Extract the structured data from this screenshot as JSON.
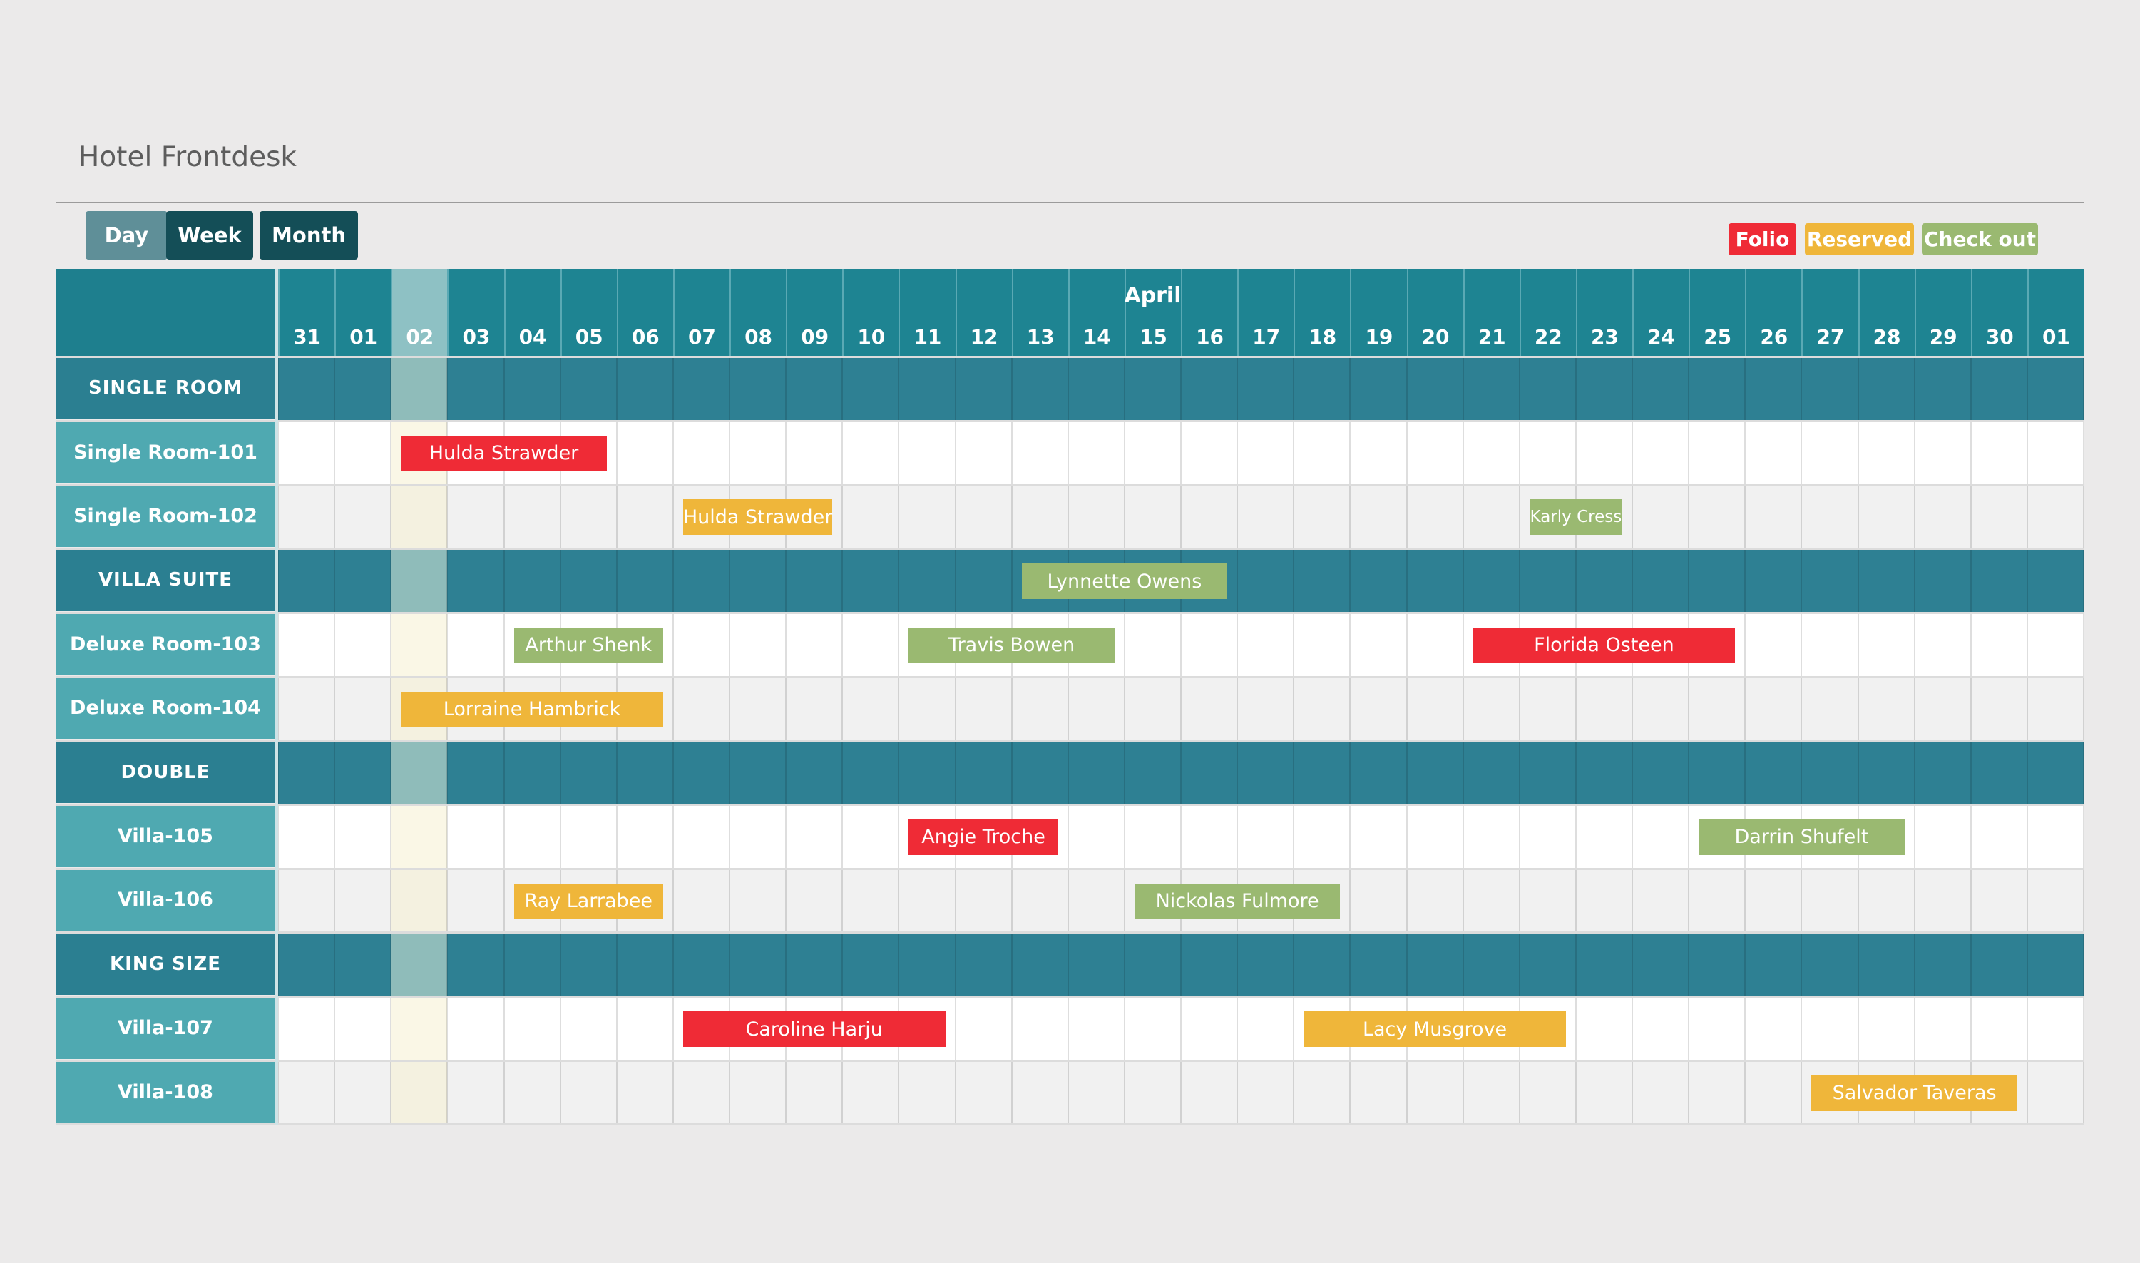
{
  "title": "Hotel Frontdesk",
  "views": [
    {
      "label": "Day",
      "color": "#5f8f98"
    },
    {
      "label": "Week",
      "color": "#144e57"
    },
    {
      "label": "Month",
      "color": "#144e57"
    }
  ],
  "legend": [
    {
      "label": "Folio",
      "color": "#ef2b36"
    },
    {
      "label": "Reserved",
      "color": "#efb63a"
    },
    {
      "label": "Check out",
      "color": "#9ab971"
    }
  ],
  "calendar": {
    "month": "April",
    "days": [
      "31",
      "01",
      "02",
      "03",
      "04",
      "05",
      "06",
      "07",
      "08",
      "09",
      "10",
      "11",
      "12",
      "13",
      "14",
      "15",
      "16",
      "17",
      "18",
      "19",
      "20",
      "21",
      "22",
      "23",
      "24",
      "25",
      "26",
      "27",
      "28",
      "29",
      "30",
      "01"
    ],
    "today": "02",
    "rows": [
      {
        "type": "group",
        "label": "SINGLE ROOM"
      },
      {
        "type": "room",
        "label": "Single Room-101"
      },
      {
        "type": "room",
        "label": "Single Room-102"
      },
      {
        "type": "group",
        "label": "VILLA SUITE"
      },
      {
        "type": "room",
        "label": "Deluxe Room-103"
      },
      {
        "type": "room",
        "label": "Deluxe Room-104"
      },
      {
        "type": "group",
        "label": "DOUBLE"
      },
      {
        "type": "room",
        "label": "Villa-105"
      },
      {
        "type": "room",
        "label": "Villa-106"
      },
      {
        "type": "group",
        "label": "KING SIZE"
      },
      {
        "type": "room",
        "label": "Villa-107"
      },
      {
        "type": "room",
        "label": "Villa-108"
      }
    ]
  },
  "bookings": [
    {
      "guest": "Hulda Strawder",
      "room": "Single Room-101",
      "start": "02",
      "end": "05",
      "status": "Folio"
    },
    {
      "guest": "Hulda Strawder",
      "room": "Single Room-102",
      "start": "07",
      "end": "09",
      "status": "Reserved"
    },
    {
      "guest": "Karly Cress",
      "room": "Single Room-102",
      "start": "22",
      "end": "23",
      "status": "Check out"
    },
    {
      "guest": "Lynnette Owens",
      "room": "VILLA SUITE",
      "start": "13",
      "end": "16",
      "status": "Check out"
    },
    {
      "guest": "Arthur Shenk",
      "room": "Deluxe Room-103",
      "start": "04",
      "end": "06",
      "status": "Check out"
    },
    {
      "guest": "Travis Bowen",
      "room": "Deluxe Room-103",
      "start": "11",
      "end": "14",
      "status": "Check out"
    },
    {
      "guest": "Florida Osteen",
      "room": "Deluxe Room-103",
      "start": "21",
      "end": "25",
      "status": "Folio"
    },
    {
      "guest": "Lorraine Hambrick",
      "room": "Deluxe Room-104",
      "start": "02",
      "end": "06",
      "status": "Reserved"
    },
    {
      "guest": "Angie Troche",
      "room": "Villa-105",
      "start": "11",
      "end": "13",
      "status": "Folio"
    },
    {
      "guest": "Darrin Shufelt",
      "room": "Villa-105",
      "start": "25",
      "end": "28",
      "status": "Check out"
    },
    {
      "guest": "Ray Larrabee",
      "room": "Villa-106",
      "start": "04",
      "end": "06",
      "status": "Reserved"
    },
    {
      "guest": "Nickolas Fulmore",
      "room": "Villa-106",
      "start": "15",
      "end": "18",
      "status": "Check out"
    },
    {
      "guest": "Caroline Harju",
      "room": "Villa-107",
      "start": "07",
      "end": "11",
      "status": "Folio"
    },
    {
      "guest": "Lacy Musgrove",
      "room": "Villa-107",
      "start": "18",
      "end": "22",
      "status": "Reserved"
    },
    {
      "guest": "Salvador Taveras",
      "room": "Villa-108",
      "start": "27",
      "end": "30",
      "status": "Reserved"
    }
  ]
}
